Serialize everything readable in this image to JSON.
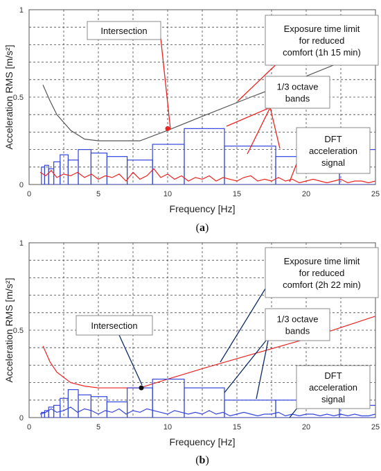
{
  "chart_data": [
    {
      "type": "line",
      "panel_label": "(a)",
      "xlabel": "Frequency [Hz]",
      "ylabel": "Acceleration RMS [m/s²]",
      "xlim": [
        0,
        25
      ],
      "ylim": [
        0,
        1
      ],
      "xticks": [
        "0",
        "5",
        "10",
        "15",
        "20",
        "25"
      ],
      "yticks": [
        "0",
        "0.5",
        "1"
      ],
      "grid": true,
      "series": [
        {
          "color": "#555555",
          "style": "line",
          "x": [
            1.0,
            1.5,
            2.0,
            3.0,
            4.0,
            5.0,
            6.3,
            8.0,
            10.0,
            12.5,
            16.0,
            20.0,
            25.0
          ],
          "y": [
            0.57,
            0.48,
            0.4,
            0.31,
            0.26,
            0.25,
            0.25,
            0.25,
            0.31,
            0.39,
            0.5,
            0.62,
            0.78
          ]
        },
        {
          "color": "#3344dd",
          "style": "bands",
          "x0": [
            0.89,
            1.12,
            1.41,
            1.78,
            2.24,
            2.82,
            3.55,
            4.47,
            5.62,
            7.08,
            8.91,
            11.2,
            14.1,
            17.8,
            22.4
          ],
          "x1": [
            1.12,
            1.41,
            1.78,
            2.24,
            2.82,
            3.55,
            4.47,
            5.62,
            7.08,
            8.91,
            11.2,
            14.1,
            17.8,
            22.4,
            28.2
          ],
          "y": [
            0.1,
            0.11,
            0.09,
            0.13,
            0.17,
            0.14,
            0.2,
            0.18,
            0.16,
            0.14,
            0.23,
            0.32,
            0.22,
            0.16,
            0.2
          ]
        },
        {
          "color": "#ee2222",
          "style": "line",
          "x": [
            0.8,
            1.2,
            1.6,
            2.0,
            2.5,
            3.0,
            3.5,
            4.0,
            4.5,
            5.0,
            5.5,
            6.0,
            6.5,
            7.0,
            7.5,
            8.0,
            8.5,
            9.0,
            9.5,
            10.0,
            10.5,
            11.0,
            11.5,
            12.0,
            12.5,
            13.0,
            13.5,
            14.0,
            14.5,
            15.0,
            15.5,
            16.0,
            16.5,
            17.0,
            17.5,
            18.0,
            18.5,
            19.0,
            19.5,
            20.0,
            20.5,
            21.0,
            21.5,
            22.0,
            22.5,
            23.0,
            23.5,
            24.0,
            24.5,
            25.0
          ],
          "y": [
            0.07,
            0.05,
            0.08,
            0.04,
            0.06,
            0.05,
            0.07,
            0.04,
            0.06,
            0.03,
            0.05,
            0.04,
            0.06,
            0.02,
            0.07,
            0.03,
            0.05,
            0.09,
            0.04,
            0.06,
            0.03,
            0.05,
            0.02,
            0.04,
            0.03,
            0.05,
            0.02,
            0.04,
            0.03,
            0.02,
            0.04,
            0.05,
            0.02,
            0.03,
            0.02,
            0.04,
            0.02,
            0.03,
            0.01,
            0.02,
            0.03,
            0.02,
            0.01,
            0.02,
            0.03,
            0.01,
            0.02,
            0.02,
            0.01,
            0.02
          ]
        }
      ],
      "intersection": {
        "x": 10.0,
        "y": 0.32,
        "color": "#ee2222"
      },
      "annotations": [
        {
          "label": "Intersection"
        },
        {
          "label": "Exposure time limit\nfor reduced\ncomfort (1h 15 min)"
        },
        {
          "label": "1/3 octave\nbands"
        },
        {
          "label": "DFT\nacceleration\nsignal"
        }
      ]
    },
    {
      "type": "line",
      "panel_label": "(b)",
      "xlabel": "Frequency [Hz]",
      "ylabel": "Acceleration RMS [m/s²]",
      "xlim": [
        0,
        25
      ],
      "ylim": [
        0,
        1
      ],
      "xticks": [
        "0",
        "5",
        "10",
        "15",
        "20",
        "25"
      ],
      "yticks": [
        "0",
        "0.5",
        "1"
      ],
      "grid": true,
      "series": [
        {
          "color": "#ee2222",
          "style": "line",
          "x": [
            1.0,
            1.5,
            2.0,
            3.0,
            4.0,
            5.0,
            6.3,
            8.0,
            10.0,
            12.5,
            16.0,
            20.0,
            25.0
          ],
          "y": [
            0.41,
            0.32,
            0.26,
            0.2,
            0.18,
            0.17,
            0.17,
            0.17,
            0.22,
            0.28,
            0.36,
            0.45,
            0.58
          ]
        },
        {
          "color": "#3344dd",
          "style": "bands",
          "x0": [
            0.89,
            1.12,
            1.41,
            1.78,
            2.24,
            2.82,
            3.55,
            4.47,
            5.62,
            7.08,
            8.91,
            11.2,
            14.1,
            17.8,
            22.4
          ],
          "x1": [
            1.12,
            1.41,
            1.78,
            2.24,
            2.82,
            3.55,
            4.47,
            5.62,
            7.08,
            8.91,
            11.2,
            14.1,
            17.8,
            22.4,
            28.2
          ],
          "y": [
            0.03,
            0.04,
            0.06,
            0.07,
            0.11,
            0.16,
            0.13,
            0.12,
            0.09,
            0.17,
            0.22,
            0.17,
            0.1,
            0.1,
            0.07
          ]
        },
        {
          "color": "#3344dd",
          "style": "line",
          "x": [
            0.8,
            1.2,
            1.6,
            2.0,
            2.5,
            3.0,
            3.5,
            4.0,
            4.5,
            5.0,
            5.5,
            6.0,
            6.5,
            7.0,
            7.5,
            8.0,
            8.5,
            9.0,
            9.5,
            10.0,
            10.5,
            11.0,
            11.5,
            12.0,
            12.5,
            13.0,
            13.5,
            14.0,
            14.5,
            15.0,
            15.5,
            16.0,
            16.5,
            17.0,
            17.5,
            18.0,
            18.5,
            19.0,
            19.5,
            20.0,
            20.5,
            21.0,
            21.5,
            22.0,
            22.5,
            23.0,
            23.5,
            24.0,
            24.5,
            25.0
          ],
          "y": [
            0.02,
            0.03,
            0.05,
            0.03,
            0.04,
            0.06,
            0.03,
            0.05,
            0.04,
            0.02,
            0.04,
            0.03,
            0.05,
            0.02,
            0.04,
            0.03,
            0.05,
            0.04,
            0.03,
            0.02,
            0.04,
            0.03,
            0.02,
            0.03,
            0.02,
            0.04,
            0.02,
            0.03,
            0.01,
            0.02,
            0.03,
            0.02,
            0.01,
            0.02,
            0.02,
            0.03,
            0.01,
            0.02,
            0.01,
            0.02,
            0.02,
            0.01,
            0.02,
            0.01,
            0.02,
            0.01,
            0.02,
            0.01,
            0.01,
            0.02
          ]
        }
      ],
      "intersection": {
        "x": 8.1,
        "y": 0.17,
        "color": "#111111"
      },
      "annotations": [
        {
          "label": "Intersection"
        },
        {
          "label": "Exposure time limit\nfor reduced\ncomfort (2h 22 min)"
        },
        {
          "label": "1/3 octave\nbands"
        },
        {
          "label": "DFT\nacceleration\nsignal"
        }
      ]
    }
  ]
}
